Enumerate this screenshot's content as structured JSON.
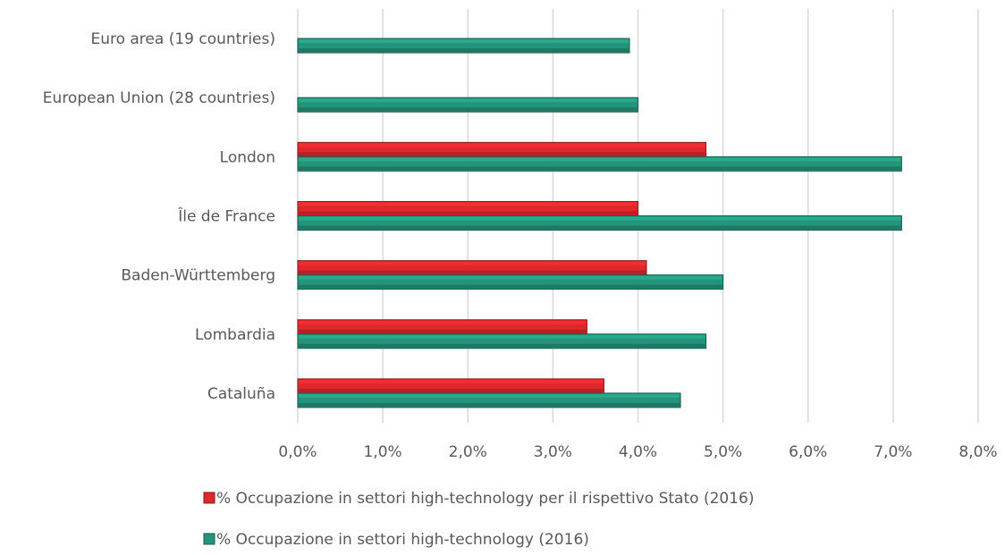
{
  "chart_data": {
    "type": "bar",
    "orientation": "horizontal",
    "categories": [
      "Euro area (19 countries)",
      "European Union (28 countries)",
      "London",
      "Île de France",
      "Baden-Württemberg",
      "Lombardia",
      "Cataluña"
    ],
    "series": [
      {
        "name": "% Occupazione in settori high-technology per il rispettivo Stato (2016)",
        "color": "#e0282c",
        "values": [
          null,
          null,
          4.8,
          4.0,
          4.1,
          3.4,
          3.6
        ]
      },
      {
        "name": "% Occupazione in settori high-technology (2016)",
        "color": "#23957a",
        "values": [
          3.9,
          4.0,
          7.1,
          7.1,
          5.0,
          4.8,
          4.5
        ]
      }
    ],
    "xlim": [
      0,
      8
    ],
    "xticks": [
      {
        "value": 0,
        "label": "0,0%"
      },
      {
        "value": 1,
        "label": "1,0%"
      },
      {
        "value": 2,
        "label": "2,0%"
      },
      {
        "value": 3,
        "label": "3,0%"
      },
      {
        "value": 4,
        "label": "4,0%"
      },
      {
        "value": 5,
        "label": "5,0%"
      },
      {
        "value": 6,
        "label": "6,0%"
      },
      {
        "value": 7,
        "label": "7,0%"
      },
      {
        "value": 8,
        "label": "8,0%"
      }
    ],
    "grid": true
  }
}
